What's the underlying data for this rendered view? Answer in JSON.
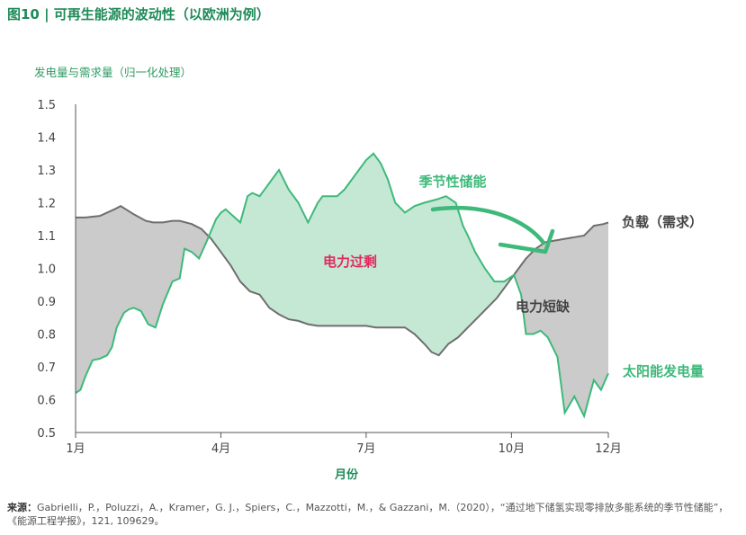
{
  "figure": {
    "title": "图10 | 可再生能源的波动性（以欧洲为例）",
    "source_label": "来源：",
    "source_text": "Gabrielli，P.，Poluzzi，A.，Kramer，G. J.，Spiers，C.，Mazzotti，M.，& Gazzani，M.（2020），“通过地下储氢实现零排放多能系统的季节性储能”，《能源工程学报》，121, 109629。"
  },
  "chart_data": {
    "type": "area",
    "ylabel": "发电量与需求量（归一化处理）",
    "xlabel": "月份",
    "ylim": [
      0.5,
      1.5
    ],
    "xlim": [
      1,
      12
    ],
    "y_ticks": [
      "1.5",
      "1.4",
      "1.3",
      "1.2",
      "1.1",
      "1.0",
      "0.9",
      "0.8",
      "0.7",
      "0.6",
      "0.5"
    ],
    "x_ticks": [
      {
        "value": 1,
        "label": "1月"
      },
      {
        "value": 4,
        "label": "4月"
      },
      {
        "value": 7,
        "label": "7月"
      },
      {
        "value": 10,
        "label": "10月"
      },
      {
        "value": 12,
        "label": "12月"
      }
    ],
    "series": [
      {
        "name": "负载（需求）",
        "color": "#6e6e6e",
        "x": [
          1.0,
          1.2,
          1.5,
          1.8,
          1.93,
          2.2,
          2.45,
          2.6,
          2.8,
          3.0,
          3.15,
          3.4,
          3.6,
          3.8,
          4.0,
          4.2,
          4.4,
          4.6,
          4.8,
          5.0,
          5.2,
          5.4,
          5.6,
          5.8,
          6.0,
          6.2,
          6.4,
          6.6,
          6.8,
          7.0,
          7.2,
          7.4,
          7.6,
          7.8,
          8.0,
          8.2,
          8.35,
          8.5,
          8.7,
          8.9,
          9.1,
          9.3,
          9.5,
          9.7,
          9.9,
          10.1,
          10.3,
          10.5,
          10.7,
          10.9,
          11.1,
          11.3,
          11.5,
          11.7,
          11.9,
          12.0
        ],
        "values": [
          1.155,
          1.155,
          1.16,
          1.18,
          1.19,
          1.165,
          1.145,
          1.14,
          1.14,
          1.145,
          1.145,
          1.135,
          1.12,
          1.09,
          1.05,
          1.01,
          0.96,
          0.93,
          0.92,
          0.88,
          0.86,
          0.845,
          0.84,
          0.83,
          0.825,
          0.825,
          0.825,
          0.825,
          0.825,
          0.825,
          0.82,
          0.82,
          0.82,
          0.82,
          0.8,
          0.77,
          0.745,
          0.735,
          0.77,
          0.79,
          0.82,
          0.85,
          0.88,
          0.91,
          0.95,
          0.99,
          1.03,
          1.06,
          1.08,
          1.085,
          1.09,
          1.095,
          1.1,
          1.13,
          1.135,
          1.14
        ]
      },
      {
        "name": "太阳能发电量",
        "color": "#3eb97a",
        "x": [
          1.0,
          1.1,
          1.2,
          1.35,
          1.5,
          1.65,
          1.75,
          1.85,
          2.0,
          2.1,
          2.2,
          2.35,
          2.5,
          2.65,
          2.8,
          3.0,
          3.15,
          3.25,
          3.4,
          3.55,
          3.7,
          3.9,
          4.0,
          4.1,
          4.25,
          4.4,
          4.55,
          4.65,
          4.8,
          4.95,
          5.05,
          5.2,
          5.4,
          5.6,
          5.8,
          6.0,
          6.1,
          6.25,
          6.4,
          6.55,
          6.7,
          6.85,
          7.0,
          7.15,
          7.3,
          7.45,
          7.6,
          7.8,
          8.0,
          8.2,
          8.45,
          8.65,
          8.85,
          9.0,
          9.1,
          9.25,
          9.45,
          9.65,
          9.85,
          10.05,
          10.2,
          10.3,
          10.45,
          10.6,
          10.75,
          10.95,
          11.1,
          11.3,
          11.5,
          11.7,
          11.85,
          12.0
        ],
        "values": [
          0.62,
          0.63,
          0.67,
          0.72,
          0.725,
          0.735,
          0.76,
          0.82,
          0.865,
          0.875,
          0.88,
          0.87,
          0.83,
          0.82,
          0.89,
          0.96,
          0.97,
          1.06,
          1.05,
          1.03,
          1.08,
          1.15,
          1.17,
          1.18,
          1.16,
          1.14,
          1.22,
          1.23,
          1.22,
          1.25,
          1.27,
          1.3,
          1.24,
          1.2,
          1.14,
          1.2,
          1.22,
          1.22,
          1.22,
          1.24,
          1.27,
          1.3,
          1.33,
          1.35,
          1.32,
          1.27,
          1.2,
          1.17,
          1.19,
          1.2,
          1.21,
          1.22,
          1.2,
          1.13,
          1.1,
          1.05,
          1.0,
          0.96,
          0.96,
          0.98,
          0.92,
          0.8,
          0.8,
          0.81,
          0.79,
          0.73,
          0.56,
          0.61,
          0.55,
          0.66,
          0.63,
          0.68
        ]
      }
    ],
    "annotations": {
      "surplus": "电力过剩",
      "deficit": "电力短缺",
      "storage": "季节性储能",
      "load_label": "负载（需求）",
      "solar_label": "太阳能发电量"
    },
    "colors": {
      "surplus_fill": "#c5e8d4",
      "deficit_fill": "#cbcbcb",
      "solar_line": "#3eb97a",
      "load_line": "#6e6e6e",
      "arrow": "#3eb97a",
      "surplus_text": "#e0295c",
      "deficit_text": "#444444",
      "accent": "#1e8a58"
    },
    "grid": false,
    "legend": "none"
  }
}
